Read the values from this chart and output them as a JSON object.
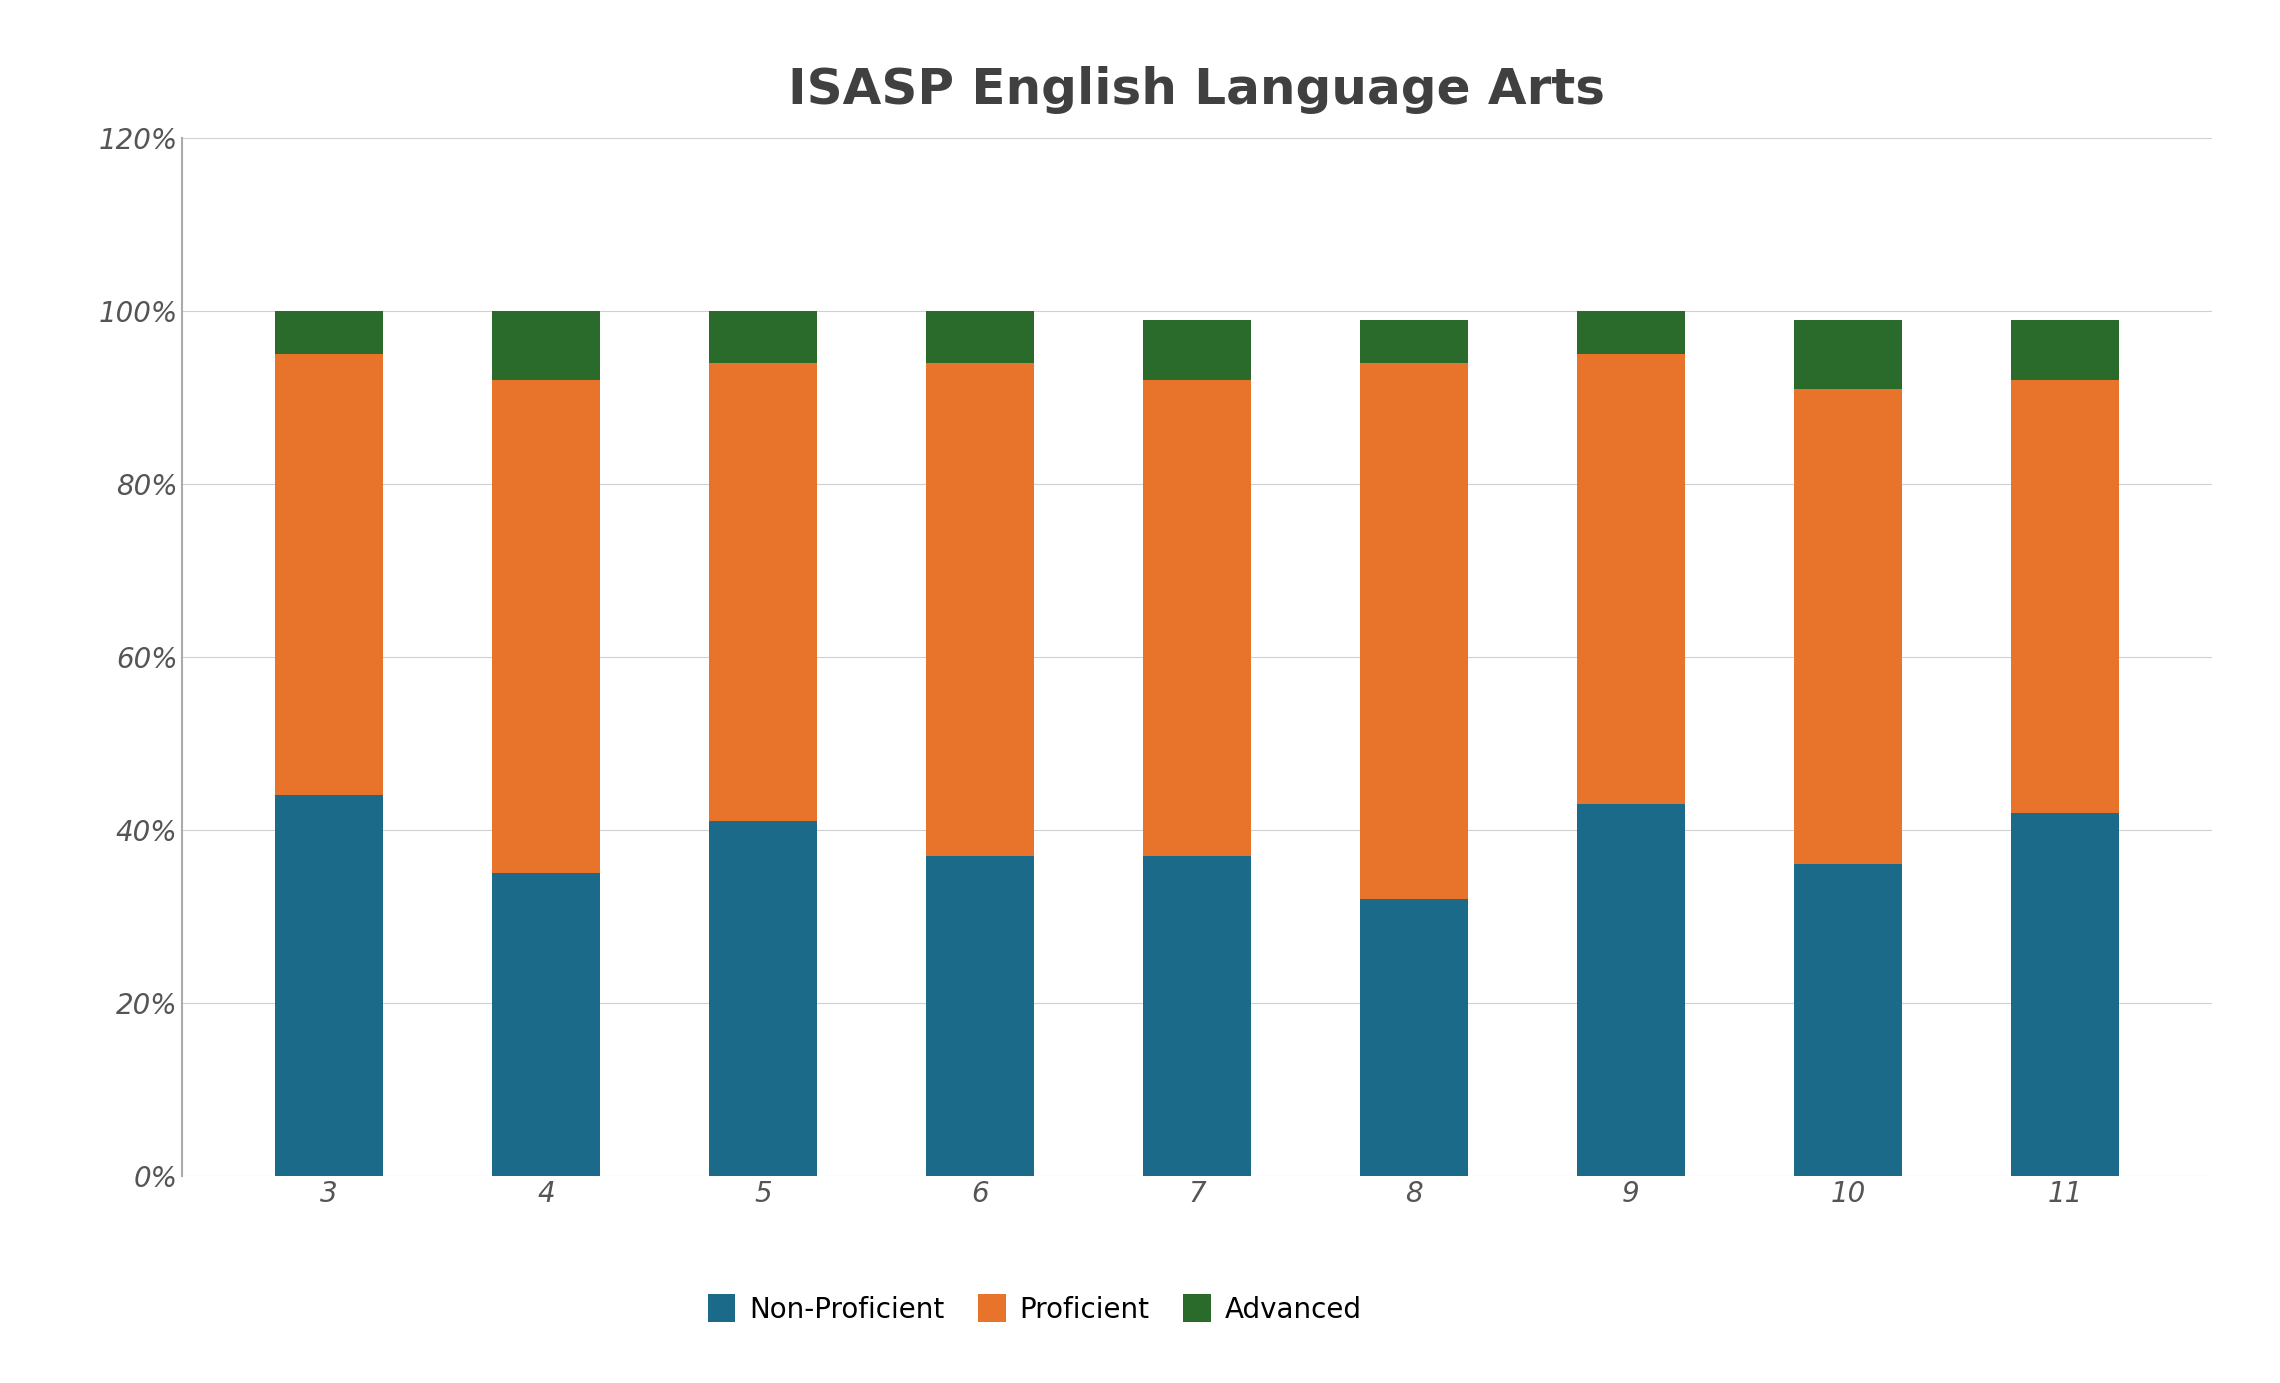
{
  "title": "ISASP English Language Arts",
  "grades": [
    3,
    4,
    5,
    6,
    7,
    8,
    9,
    10,
    11
  ],
  "non_proficient": [
    44,
    35,
    41,
    37,
    37,
    32,
    43,
    36,
    42
  ],
  "proficient": [
    51,
    57,
    53,
    57,
    55,
    62,
    52,
    55,
    50
  ],
  "advanced": [
    5,
    8,
    6,
    6,
    7,
    5,
    5,
    8,
    7
  ],
  "colors": {
    "non_proficient": "#1b6a8a",
    "proficient": "#e8732a",
    "advanced": "#2a6a2a"
  },
  "legend_labels": [
    "Non-Proficient",
    "Proficient",
    "Advanced"
  ],
  "ylim": [
    0,
    120
  ],
  "yticks": [
    0,
    20,
    40,
    60,
    80,
    100,
    120
  ],
  "ytick_labels": [
    "0%",
    "20%",
    "40%",
    "60%",
    "80%",
    "100%",
    "120%"
  ],
  "background_color": "#ffffff",
  "title_fontsize": 36,
  "tick_fontsize": 20,
  "legend_fontsize": 20,
  "bar_width": 0.5
}
